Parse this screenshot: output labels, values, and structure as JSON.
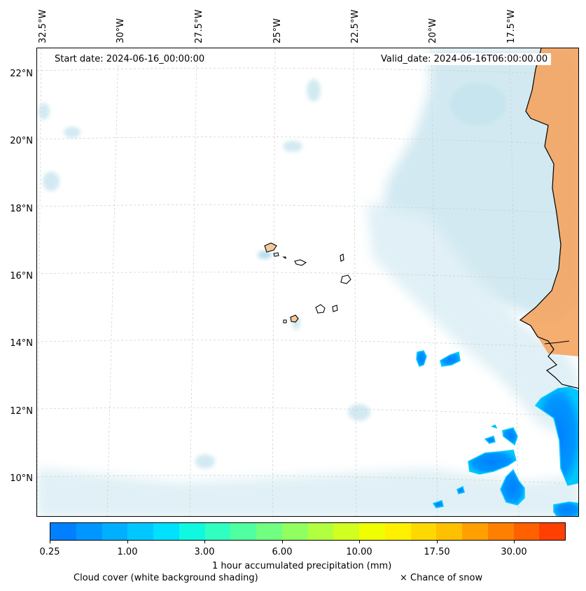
{
  "map": {
    "start_label": "Start date: 2024-06-16_00:00:00",
    "valid_label": "Valid_date: 2024-06-16T06:00:00.00",
    "lon_labels": [
      "32.5°W",
      "30°W",
      "27.5°W",
      "25°W",
      "22.5°W",
      "20°W",
      "17.5°W"
    ],
    "lat_labels": [
      "22°N",
      "20°N",
      "18°N",
      "16°N",
      "14°N",
      "12°N",
      "10°N"
    ],
    "colors": {
      "cloud": "#add8e6",
      "land": "#f4a460",
      "coastline": "#000000",
      "grid": "#cccccc"
    }
  },
  "legend": {
    "colorbar_colors": [
      "#0080ff",
      "#0096ff",
      "#00b0ff",
      "#00c8ff",
      "#00e0ff",
      "#10f8e0",
      "#30ffc0",
      "#50ffa0",
      "#70ff80",
      "#90ff60",
      "#b0ff40",
      "#d0ff20",
      "#f0ff00",
      "#fff000",
      "#ffd800",
      "#ffc000",
      "#ffa000",
      "#ff8000",
      "#ff6000",
      "#ff4000"
    ],
    "ticks": [
      "0.25",
      "1.00",
      "3.00",
      "6.00",
      "10.00",
      "17.50",
      "30.00"
    ],
    "title": "1 hour accumulated precipitation (mm)",
    "cloud_caption": "Cloud cover (white background shading)",
    "snow_caption": "× Chance of snow"
  }
}
